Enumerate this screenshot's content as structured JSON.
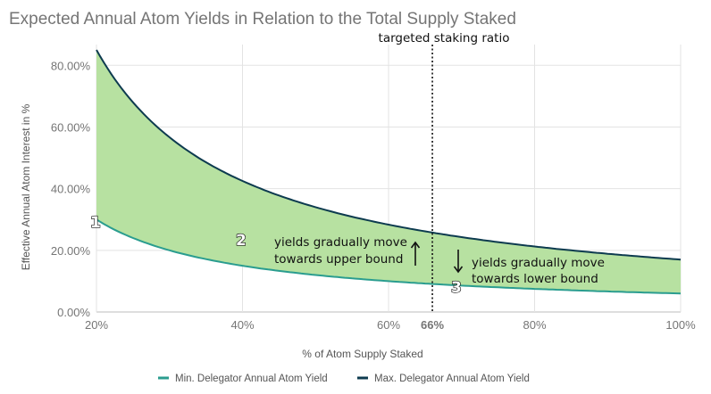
{
  "chart_data": {
    "type": "area",
    "title": "Expected Annual Atom Yields in Relation to the Total Supply Staked",
    "xlabel": "% of Atom Supply Staked",
    "ylabel": "Effective Annual Atom Interest in %",
    "xlim": [
      20,
      100
    ],
    "ylim": [
      0,
      0.85
    ],
    "x_ticks": [
      "20%",
      "40%",
      "60%",
      "80%",
      "100%"
    ],
    "y_ticks": [
      "0.00%",
      "20.00%",
      "40.00%",
      "60.00%",
      "80.00%"
    ],
    "special_x_tick": "66%",
    "grid": true,
    "legend_position": "bottom",
    "fill_color": "#b7e1a1",
    "x": [
      20,
      25,
      30,
      35,
      40,
      45,
      50,
      55,
      60,
      66,
      70,
      75,
      80,
      85,
      90,
      95,
      100
    ],
    "series": [
      {
        "name": "Min. Delegator Annual Atom Yield",
        "color": "#2a9d8f",
        "values": [
          0.3,
          0.24,
          0.2,
          0.171,
          0.15,
          0.133,
          0.12,
          0.109,
          0.1,
          0.091,
          0.086,
          0.08,
          0.075,
          0.071,
          0.067,
          0.063,
          0.06
        ]
      },
      {
        "name": "Max. Delegator Annual Atom Yield",
        "color": "#0d3b4f",
        "values": [
          0.85,
          0.68,
          0.567,
          0.486,
          0.425,
          0.378,
          0.34,
          0.309,
          0.283,
          0.258,
          0.243,
          0.227,
          0.213,
          0.2,
          0.189,
          0.179,
          0.17
        ]
      }
    ],
    "annotations": {
      "targeted_line_label": "targeted staking ratio",
      "targeted_line_x": 66,
      "label_1": "1",
      "label_2": "2",
      "label_3": "3",
      "upper_text_1": "yields gradually move",
      "upper_text_2": "towards upper bound",
      "lower_text_1": "yields gradually move",
      "lower_text_2": "towards lower bound"
    }
  }
}
